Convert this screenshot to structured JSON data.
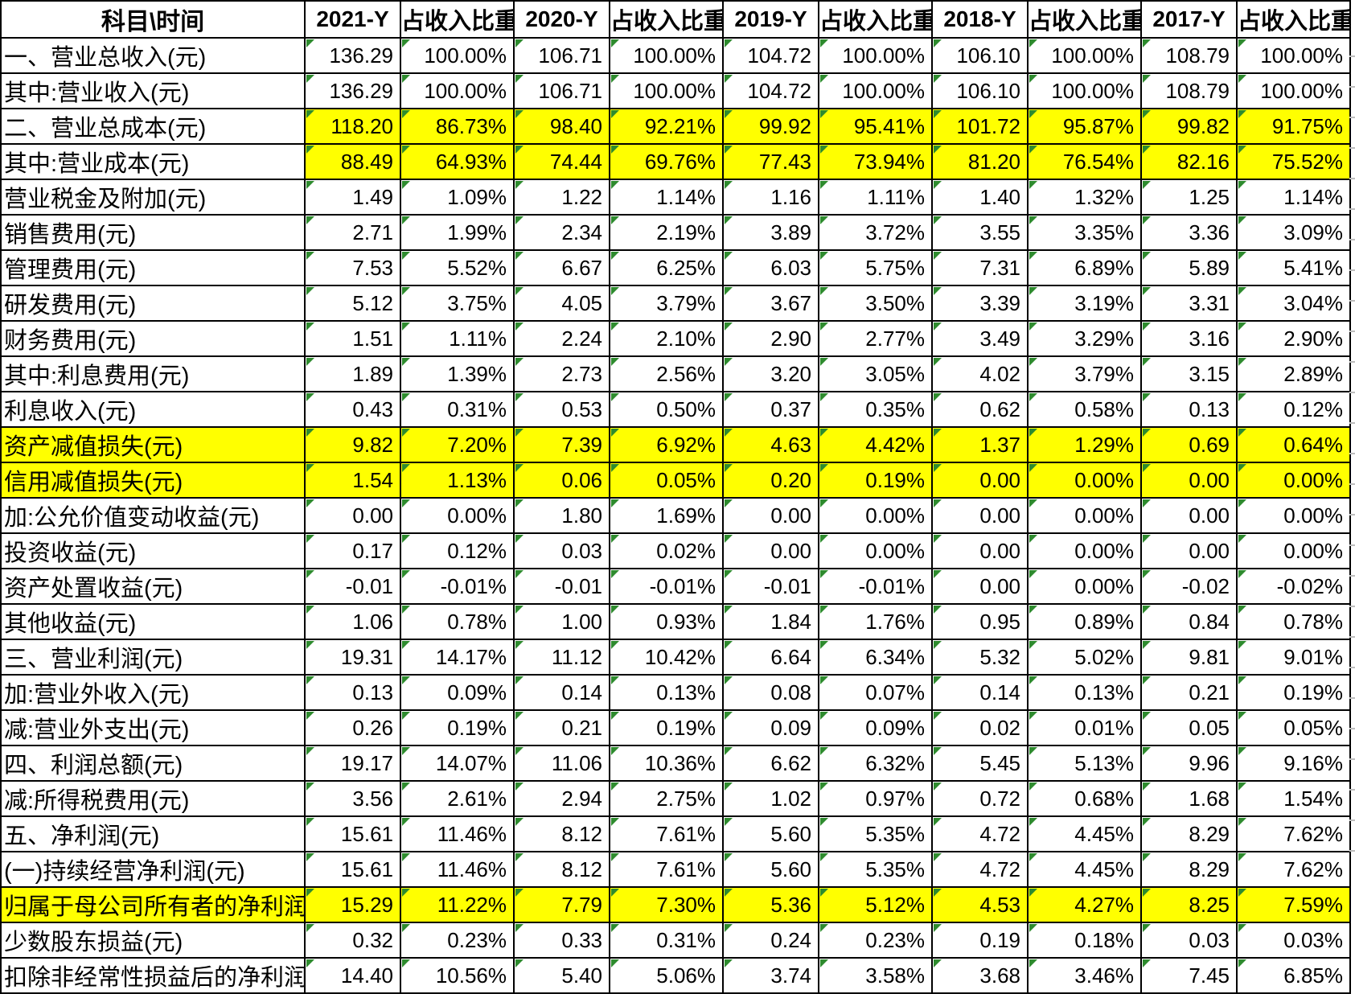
{
  "header": {
    "corner": "科目\\时间",
    "columns": [
      "2021-Y",
      "占收入比重",
      "2020-Y",
      "占收入比重",
      "2019-Y",
      "占收入比重",
      "2018-Y",
      "占收入比重",
      "2017-Y",
      "占收入比重"
    ]
  },
  "rows": [
    {
      "label": "一、营业总收入(元)",
      "highlight": "none",
      "values": [
        "136.29",
        "100.00%",
        "106.71",
        "100.00%",
        "104.72",
        "100.00%",
        "106.10",
        "100.00%",
        "108.79",
        "100.00%"
      ]
    },
    {
      "label": "其中:营业收入(元)",
      "highlight": "none",
      "values": [
        "136.29",
        "100.00%",
        "106.71",
        "100.00%",
        "104.72",
        "100.00%",
        "106.10",
        "100.00%",
        "108.79",
        "100.00%"
      ]
    },
    {
      "label": "二、营业总成本(元)",
      "highlight": "data",
      "values": [
        "118.20",
        "86.73%",
        "98.40",
        "92.21%",
        "99.92",
        "95.41%",
        "101.72",
        "95.87%",
        "99.82",
        "91.75%"
      ]
    },
    {
      "label": "其中:营业成本(元)",
      "highlight": "data",
      "values": [
        "88.49",
        "64.93%",
        "74.44",
        "69.76%",
        "77.43",
        "73.94%",
        "81.20",
        "76.54%",
        "82.16",
        "75.52%"
      ]
    },
    {
      "label": "营业税金及附加(元)",
      "highlight": "none",
      "values": [
        "1.49",
        "1.09%",
        "1.22",
        "1.14%",
        "1.16",
        "1.11%",
        "1.40",
        "1.32%",
        "1.25",
        "1.14%"
      ]
    },
    {
      "label": "销售费用(元)",
      "highlight": "none",
      "values": [
        "2.71",
        "1.99%",
        "2.34",
        "2.19%",
        "3.89",
        "3.72%",
        "3.55",
        "3.35%",
        "3.36",
        "3.09%"
      ]
    },
    {
      "label": "管理费用(元)",
      "highlight": "none",
      "values": [
        "7.53",
        "5.52%",
        "6.67",
        "6.25%",
        "6.03",
        "5.75%",
        "7.31",
        "6.89%",
        "5.89",
        "5.41%"
      ]
    },
    {
      "label": "研发费用(元)",
      "highlight": "none",
      "values": [
        "5.12",
        "3.75%",
        "4.05",
        "3.79%",
        "3.67",
        "3.50%",
        "3.39",
        "3.19%",
        "3.31",
        "3.04%"
      ]
    },
    {
      "label": "财务费用(元)",
      "highlight": "none",
      "values": [
        "1.51",
        "1.11%",
        "2.24",
        "2.10%",
        "2.90",
        "2.77%",
        "3.49",
        "3.29%",
        "3.16",
        "2.90%"
      ]
    },
    {
      "label": "其中:利息费用(元)",
      "highlight": "none",
      "values": [
        "1.89",
        "1.39%",
        "2.73",
        "2.56%",
        "3.20",
        "3.05%",
        "4.02",
        "3.79%",
        "3.15",
        "2.89%"
      ]
    },
    {
      "label": "利息收入(元)",
      "highlight": "none",
      "values": [
        "0.43",
        "0.31%",
        "0.53",
        "0.50%",
        "0.37",
        "0.35%",
        "0.62",
        "0.58%",
        "0.13",
        "0.12%"
      ]
    },
    {
      "label": "资产减值损失(元)",
      "highlight": "full",
      "values": [
        "9.82",
        "7.20%",
        "7.39",
        "6.92%",
        "4.63",
        "4.42%",
        "1.37",
        "1.29%",
        "0.69",
        "0.64%"
      ]
    },
    {
      "label": "信用减值损失(元)",
      "highlight": "full",
      "values": [
        "1.54",
        "1.13%",
        "0.06",
        "0.05%",
        "0.20",
        "0.19%",
        "0.00",
        "0.00%",
        "0.00",
        "0.00%"
      ]
    },
    {
      "label": "加:公允价值变动收益(元)",
      "highlight": "none",
      "values": [
        "0.00",
        "0.00%",
        "1.80",
        "1.69%",
        "0.00",
        "0.00%",
        "0.00",
        "0.00%",
        "0.00",
        "0.00%"
      ]
    },
    {
      "label": "投资收益(元)",
      "highlight": "none",
      "values": [
        "0.17",
        "0.12%",
        "0.03",
        "0.02%",
        "0.00",
        "0.00%",
        "0.00",
        "0.00%",
        "0.00",
        "0.00%"
      ]
    },
    {
      "label": "资产处置收益(元)",
      "highlight": "none",
      "values": [
        "-0.01",
        "-0.01%",
        "-0.01",
        "-0.01%",
        "-0.01",
        "-0.01%",
        "0.00",
        "0.00%",
        "-0.02",
        "-0.02%"
      ]
    },
    {
      "label": "其他收益(元)",
      "highlight": "none",
      "values": [
        "1.06",
        "0.78%",
        "1.00",
        "0.93%",
        "1.84",
        "1.76%",
        "0.95",
        "0.89%",
        "0.84",
        "0.78%"
      ]
    },
    {
      "label": "三、营业利润(元)",
      "highlight": "none",
      "values": [
        "19.31",
        "14.17%",
        "11.12",
        "10.42%",
        "6.64",
        "6.34%",
        "5.32",
        "5.02%",
        "9.81",
        "9.01%"
      ]
    },
    {
      "label": "加:营业外收入(元)",
      "highlight": "none",
      "values": [
        "0.13",
        "0.09%",
        "0.14",
        "0.13%",
        "0.08",
        "0.07%",
        "0.14",
        "0.13%",
        "0.21",
        "0.19%"
      ]
    },
    {
      "label": "减:营业外支出(元)",
      "highlight": "none",
      "values": [
        "0.26",
        "0.19%",
        "0.21",
        "0.19%",
        "0.09",
        "0.09%",
        "0.02",
        "0.01%",
        "0.05",
        "0.05%"
      ]
    },
    {
      "label": "四、利润总额(元)",
      "highlight": "none",
      "values": [
        "19.17",
        "14.07%",
        "11.06",
        "10.36%",
        "6.62",
        "6.32%",
        "5.45",
        "5.13%",
        "9.96",
        "9.16%"
      ]
    },
    {
      "label": "减:所得税费用(元)",
      "highlight": "none",
      "values": [
        "3.56",
        "2.61%",
        "2.94",
        "2.75%",
        "1.02",
        "0.97%",
        "0.72",
        "0.68%",
        "1.68",
        "1.54%"
      ]
    },
    {
      "label": "五、净利润(元)",
      "highlight": "none",
      "values": [
        "15.61",
        "11.46%",
        "8.12",
        "7.61%",
        "5.60",
        "5.35%",
        "4.72",
        "4.45%",
        "8.29",
        "7.62%"
      ]
    },
    {
      "label": "(一)持续经营净利润(元)",
      "highlight": "none",
      "values": [
        "15.61",
        "11.46%",
        "8.12",
        "7.61%",
        "5.60",
        "5.35%",
        "4.72",
        "4.45%",
        "8.29",
        "7.62%"
      ]
    },
    {
      "label": "归属于母公司所有者的净利润",
      "highlight": "full",
      "values": [
        "15.29",
        "11.22%",
        "7.79",
        "7.30%",
        "5.36",
        "5.12%",
        "4.53",
        "4.27%",
        "8.25",
        "7.59%"
      ]
    },
    {
      "label": "少数股东损益(元)",
      "highlight": "none",
      "values": [
        "0.32",
        "0.23%",
        "0.33",
        "0.31%",
        "0.24",
        "0.23%",
        "0.19",
        "0.18%",
        "0.03",
        "0.03%"
      ]
    },
    {
      "label": "扣除非经常性损益后的净利润",
      "highlight": "none",
      "values": [
        "14.40",
        "10.56%",
        "5.40",
        "5.06%",
        "3.74",
        "3.58%",
        "3.68",
        "3.46%",
        "7.45",
        "6.85%"
      ]
    }
  ],
  "colors": {
    "highlight": "#FFFF00",
    "error_indicator": "#2E8B2E",
    "grid_border": "#000000",
    "faint_gridline": "#BDBDBD"
  }
}
